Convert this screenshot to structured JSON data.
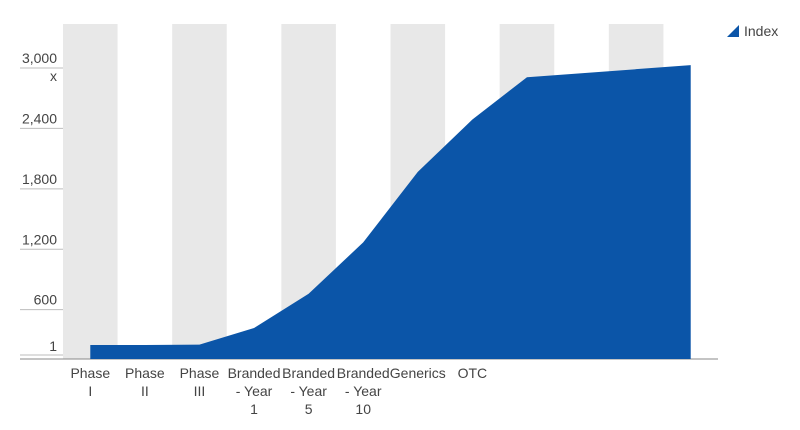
{
  "chart_data": {
    "type": "area",
    "categories": [
      [
        "Phase",
        "I"
      ],
      [
        "Phase",
        "II"
      ],
      [
        "Phase",
        "III"
      ],
      [
        "Branded",
        "- Year",
        "1"
      ],
      [
        "Branded",
        "- Year",
        "5"
      ],
      [
        "Branded",
        "- Year",
        "10"
      ],
      [
        "Generics"
      ],
      [
        "OTC"
      ],
      [],
      [],
      [],
      []
    ],
    "series": [
      {
        "name": "Index",
        "values": [
          1,
          1,
          5,
          170,
          510,
          1020,
          1720,
          2240,
          2660,
          2700,
          2740,
          2780
        ]
      }
    ],
    "y_ticks": [
      "1",
      "600",
      "1,200",
      "1,800",
      "2,400",
      "3,000"
    ],
    "y_tick_values": [
      1,
      600,
      1200,
      1800,
      2400,
      3000
    ],
    "y_unit": "x",
    "ylim": [
      1,
      3000
    ],
    "grid": true,
    "alternating_column_bands": true,
    "legend_position": "top-right",
    "colors": {
      "series": "#0b55a8",
      "band": "#e8e8e8",
      "gridline": "#bdbdbd",
      "text": "#444444"
    }
  }
}
